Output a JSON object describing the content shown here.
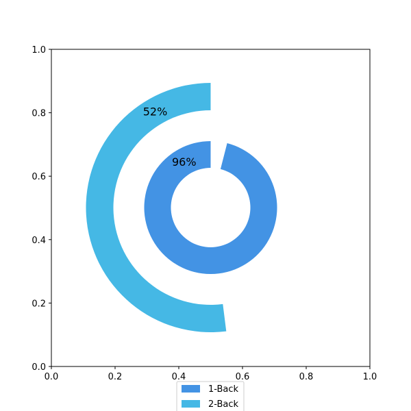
{
  "chart_data": {
    "type": "radial-bar",
    "title": "",
    "xlabel": "",
    "ylabel": "",
    "xlim": [
      0,
      1
    ],
    "ylim": [
      0,
      1
    ],
    "x_ticks": [
      "0.0",
      "0.2",
      "0.4",
      "0.6",
      "0.8",
      "1.0"
    ],
    "y_ticks": [
      "0.0",
      "0.2",
      "0.4",
      "0.6",
      "0.8",
      "1.0"
    ],
    "series": [
      {
        "name": "1-Back",
        "value": 96,
        "label": "96%",
        "color": "#4393E4"
      },
      {
        "name": "2-Back",
        "value": 52,
        "label": "52%",
        "color": "#45B8E5"
      }
    ],
    "legend": {
      "position": "bottom-center",
      "entries": [
        "1-Back",
        "2-Back"
      ]
    }
  }
}
